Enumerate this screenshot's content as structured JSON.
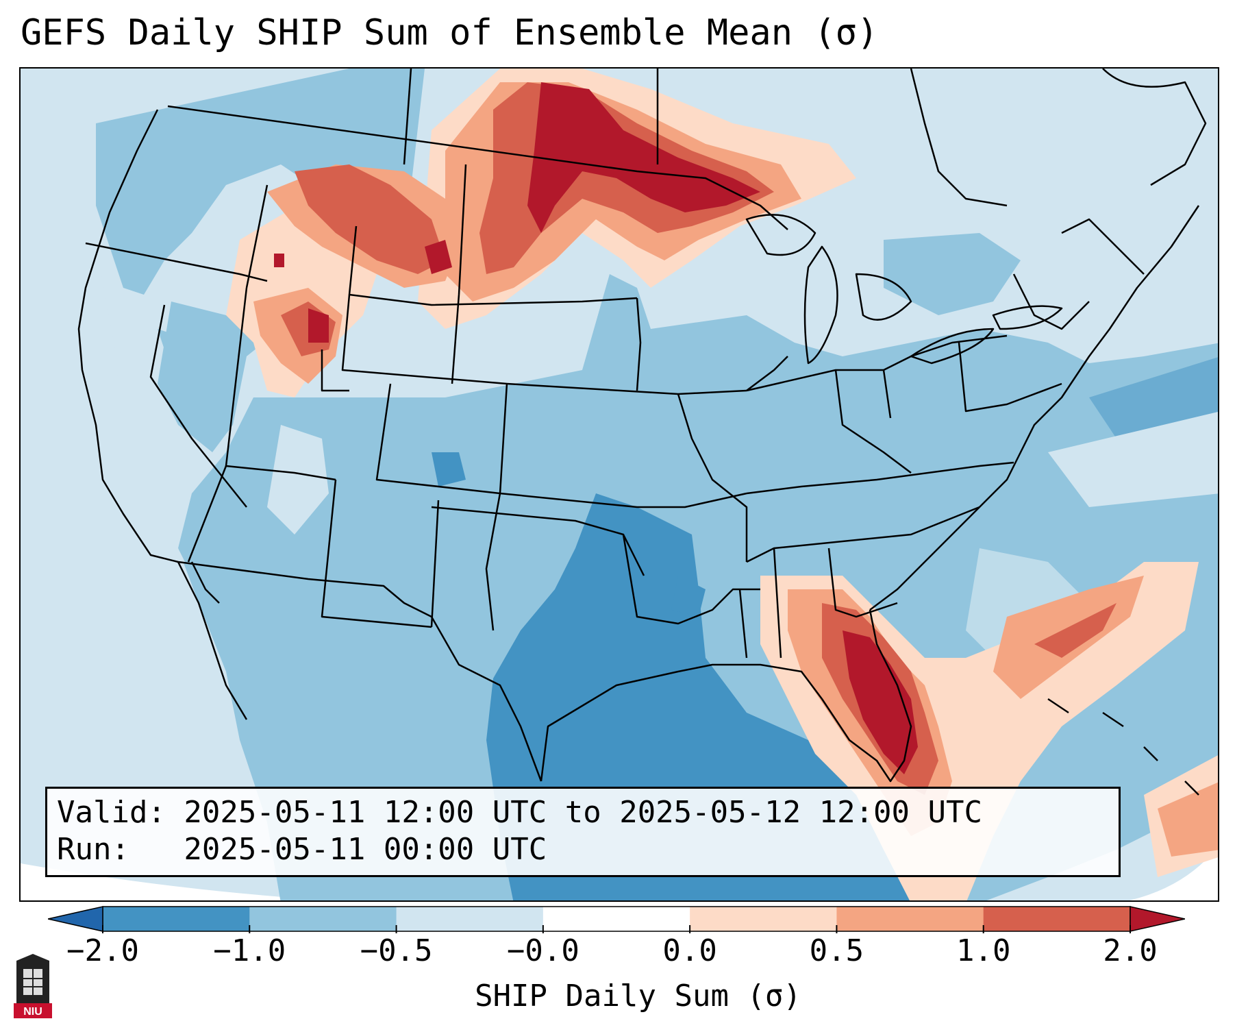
{
  "title": "GEFS Daily SHIP Sum of Ensemble Mean (σ)",
  "info": {
    "valid_line": "Valid: 2025-05-11 12:00 UTC to 2025-05-12 12:00 UTC",
    "run_line": "Run:   2025-05-11 00:00 UTC"
  },
  "colorbar": {
    "label": "SHIP Daily Sum (σ)",
    "ticks": [
      "−2.0",
      "−1.0",
      "−0.5",
      "−0.0",
      "0.0",
      "0.5",
      "1.0",
      "2.0"
    ],
    "colors": [
      "#4393c3",
      "#92c5de",
      "#d1e5f0",
      "#ffffff",
      "#fddbc7",
      "#f4a582",
      "#d6604d",
      "#b2182b"
    ],
    "extend_low_color": "#2166ac",
    "extend_high_color": "#b2182b"
  },
  "map": {
    "background_color": "#d1e5f0",
    "region_colors": {
      "strong_negative": "#4393c3",
      "negative": "#92c5de",
      "near_zero_low": "#d1e5f0",
      "near_zero_high": "#fddbc7",
      "positive": "#f4a582",
      "strong_positive": "#d6604d",
      "very_strong_positive": "#b2182b"
    }
  },
  "logo": {
    "text": "NIU",
    "color": "#c8102e"
  }
}
